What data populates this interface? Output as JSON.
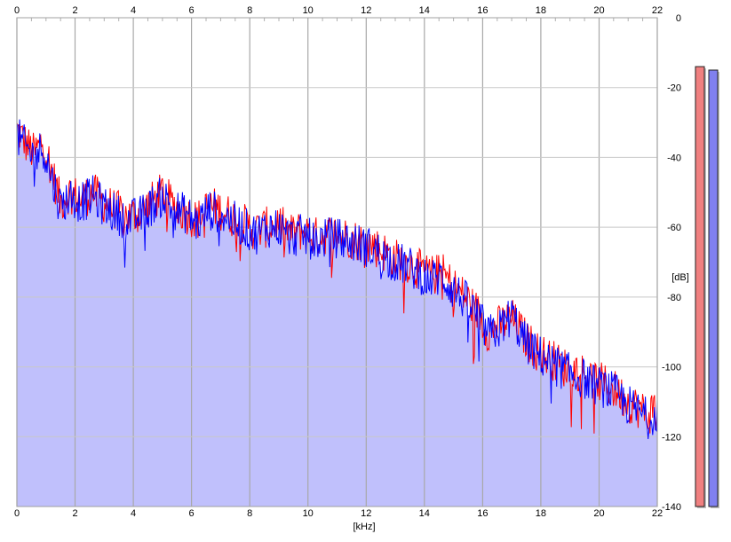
{
  "chart_data": {
    "type": "area",
    "xlabel": "[kHz]",
    "ylabel": "[dB]",
    "xlim": [
      0,
      22
    ],
    "ylim": [
      -140,
      0
    ],
    "x_ticks": [
      0,
      2,
      4,
      6,
      8,
      10,
      12,
      14,
      16,
      18,
      20,
      22
    ],
    "y_ticks": [
      0,
      -20,
      -40,
      -60,
      -80,
      -100,
      -120,
      -140
    ],
    "grid": true,
    "legend": "none",
    "series": [
      {
        "color": "#ff0000",
        "points": [
          [
            0,
            -32
          ],
          [
            0.3,
            -36
          ],
          [
            0.6,
            -39
          ],
          [
            0.9,
            -35
          ],
          [
            1.2,
            -44
          ],
          [
            1.5,
            -53
          ],
          [
            1.8,
            -50
          ],
          [
            2.2,
            -52
          ],
          [
            2.6,
            -50
          ],
          [
            3.0,
            -53
          ],
          [
            3.4,
            -55
          ],
          [
            3.8,
            -57
          ],
          [
            4.2,
            -56
          ],
          [
            4.6,
            -53
          ],
          [
            5.0,
            -50
          ],
          [
            5.4,
            -54
          ],
          [
            5.8,
            -56
          ],
          [
            6.2,
            -58
          ],
          [
            6.6,
            -54
          ],
          [
            7.0,
            -55
          ],
          [
            7.4,
            -57
          ],
          [
            7.8,
            -59
          ],
          [
            8.2,
            -61
          ],
          [
            8.6,
            -60
          ],
          [
            9.0,
            -59
          ],
          [
            9.4,
            -62
          ],
          [
            9.8,
            -61
          ],
          [
            10.2,
            -63
          ],
          [
            10.6,
            -62
          ],
          [
            11.0,
            -62
          ],
          [
            11.4,
            -63
          ],
          [
            11.8,
            -64
          ],
          [
            12.2,
            -65
          ],
          [
            12.6,
            -67
          ],
          [
            13.0,
            -69
          ],
          [
            13.4,
            -70
          ],
          [
            13.8,
            -72
          ],
          [
            14.2,
            -74
          ],
          [
            14.6,
            -73
          ],
          [
            15.0,
            -77
          ],
          [
            15.4,
            -80
          ],
          [
            15.8,
            -84
          ],
          [
            16.2,
            -90
          ],
          [
            16.6,
            -88
          ],
          [
            17.0,
            -86
          ],
          [
            17.4,
            -91
          ],
          [
            17.8,
            -95
          ],
          [
            18.2,
            -97
          ],
          [
            18.6,
            -99
          ],
          [
            19.0,
            -101
          ],
          [
            19.4,
            -101
          ],
          [
            19.8,
            -104
          ],
          [
            20.2,
            -105
          ],
          [
            20.6,
            -107
          ],
          [
            21.0,
            -110
          ],
          [
            21.4,
            -112
          ],
          [
            21.7,
            -114
          ],
          [
            22.0,
            -110
          ]
        ]
      },
      {
        "color": "#0000ff",
        "points": [
          [
            0,
            -34
          ],
          [
            0.3,
            -37
          ],
          [
            0.6,
            -40
          ],
          [
            0.9,
            -37
          ],
          [
            1.2,
            -46
          ],
          [
            1.5,
            -54
          ],
          [
            1.8,
            -51
          ],
          [
            2.2,
            -53
          ],
          [
            2.6,
            -51
          ],
          [
            3.0,
            -54
          ],
          [
            3.4,
            -56
          ],
          [
            3.8,
            -58
          ],
          [
            4.2,
            -57
          ],
          [
            4.6,
            -54
          ],
          [
            5.0,
            -51
          ],
          [
            5.4,
            -55
          ],
          [
            5.8,
            -56
          ],
          [
            6.2,
            -59
          ],
          [
            6.6,
            -55
          ],
          [
            7.0,
            -56
          ],
          [
            7.4,
            -58
          ],
          [
            7.8,
            -60
          ],
          [
            8.2,
            -62
          ],
          [
            8.6,
            -60
          ],
          [
            9.0,
            -60
          ],
          [
            9.4,
            -63
          ],
          [
            9.8,
            -62
          ],
          [
            10.2,
            -64
          ],
          [
            10.6,
            -63
          ],
          [
            11.0,
            -63
          ],
          [
            11.4,
            -64
          ],
          [
            11.8,
            -65
          ],
          [
            12.2,
            -66
          ],
          [
            12.6,
            -68
          ],
          [
            13.0,
            -70
          ],
          [
            13.4,
            -71
          ],
          [
            13.8,
            -73
          ],
          [
            14.2,
            -75
          ],
          [
            14.6,
            -74
          ],
          [
            15.0,
            -78
          ],
          [
            15.4,
            -81
          ],
          [
            15.8,
            -85
          ],
          [
            16.2,
            -91
          ],
          [
            16.6,
            -89
          ],
          [
            17.0,
            -85
          ],
          [
            17.4,
            -92
          ],
          [
            17.8,
            -96
          ],
          [
            18.2,
            -98
          ],
          [
            18.6,
            -100
          ],
          [
            19.0,
            -102
          ],
          [
            19.4,
            -103
          ],
          [
            19.8,
            -105
          ],
          [
            20.2,
            -106
          ],
          [
            20.6,
            -108
          ],
          [
            21.0,
            -111
          ],
          [
            21.4,
            -113
          ],
          [
            21.7,
            -115
          ],
          [
            22.0,
            -112
          ]
        ]
      }
    ],
    "meters": [
      {
        "color": "#f08080",
        "value": -14
      },
      {
        "color": "#8080f0",
        "value": -15
      }
    ],
    "fill_color": "#c0c0fc"
  }
}
